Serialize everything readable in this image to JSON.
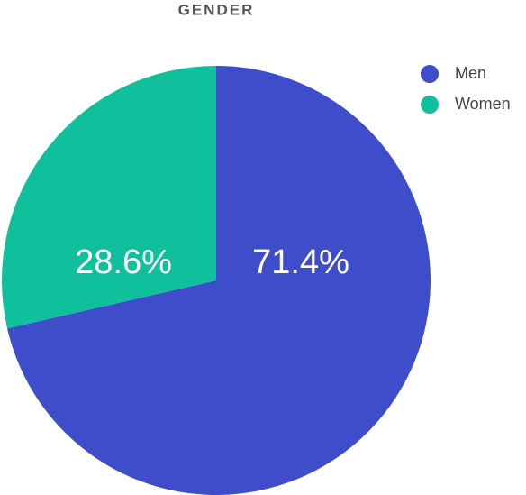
{
  "chart_data": {
    "type": "pie",
    "title": "GENDER",
    "categories": [
      "Men",
      "Women"
    ],
    "values": [
      71.4,
      28.6
    ],
    "value_labels": [
      "71.4%",
      "28.6%"
    ],
    "colors": [
      "#3e4ecb",
      "#10bf9b"
    ]
  }
}
